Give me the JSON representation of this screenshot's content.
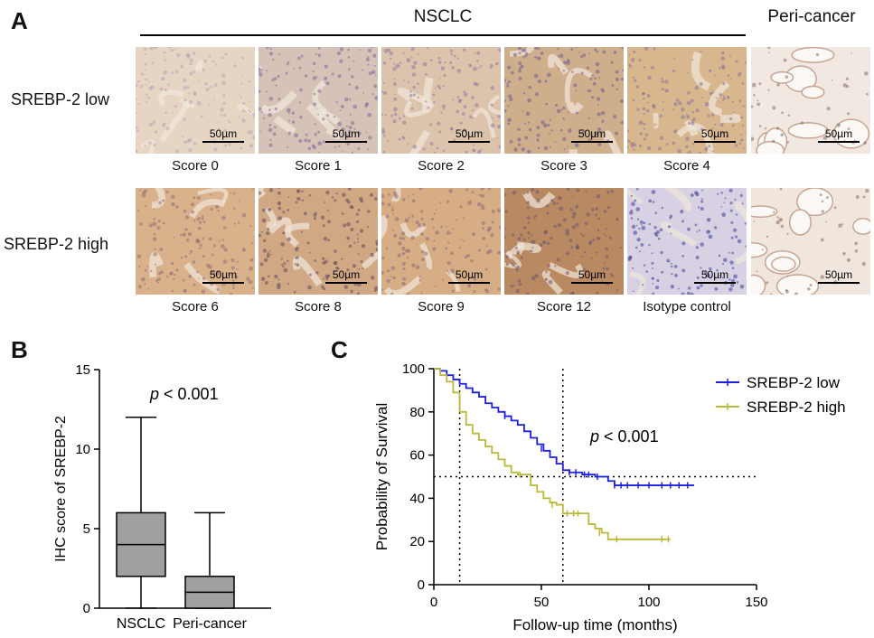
{
  "panelA": {
    "letter": "A",
    "group_header": "NSCLC",
    "peri_header": "Peri-cancer",
    "scale_label": "50µm",
    "rows": [
      {
        "label": "SREBP-2 low",
        "tiles": [
          {
            "caption": "Score 0",
            "tone": "#e7d5c3",
            "nuclei": "#b9a4b6"
          },
          {
            "caption": "Score 1",
            "tone": "#d6c2b6",
            "nuclei": "#7f6c99"
          },
          {
            "caption": "Score 2",
            "tone": "#dcc3ab",
            "nuclei": "#8e7aa0"
          },
          {
            "caption": "Score 3",
            "tone": "#cfae8c",
            "nuclei": "#6b5e90"
          },
          {
            "caption": "Score 4",
            "tone": "#d8b78f",
            "nuclei": "#8a7497"
          },
          {
            "caption": "",
            "tone": "#f1e8e1",
            "nuclei": "#8a6e6c"
          }
        ]
      },
      {
        "label": "SREBP-2 high",
        "tiles": [
          {
            "caption": "Score 6",
            "tone": "#d9b18a",
            "nuclei": "#8d6f78"
          },
          {
            "caption": "Score 8",
            "tone": "#d0a884",
            "nuclei": "#5f4a5e"
          },
          {
            "caption": "Score 9",
            "tone": "#d6ad85",
            "nuclei": "#8e6c78"
          },
          {
            "caption": "Score 12",
            "tone": "#b98a62",
            "nuclei": "#6b5470"
          },
          {
            "caption": "Isotype control",
            "tone": "#d7d1e3",
            "nuclei": "#3e3f94"
          },
          {
            "caption": "",
            "tone": "#f1e6dd",
            "nuclei": "#8a6a60"
          }
        ]
      }
    ]
  },
  "panelB": {
    "letter": "B",
    "chart_data": {
      "type": "boxplot",
      "ylabel": "IHC score of SREBP-2",
      "ylim": [
        0,
        15
      ],
      "yticks": [
        0,
        5,
        10,
        15
      ],
      "categories": [
        "NSCLC",
        "Peri-cancer"
      ],
      "boxes": [
        {
          "name": "NSCLC",
          "min": 0,
          "q1": 2,
          "median": 4,
          "q3": 6,
          "max": 12
        },
        {
          "name": "Peri-cancer",
          "min": 0,
          "q1": 0,
          "median": 1,
          "q3": 2,
          "max": 6
        }
      ],
      "annotation": {
        "p_italic": "p",
        "rest": " < 0.001"
      },
      "box_color": "#a0a0a0"
    }
  },
  "panelC": {
    "letter": "C",
    "chart_data": {
      "type": "line",
      "xlabel": "Follow-up time (months)",
      "ylabel": "Probability of Survival",
      "xlim": [
        0,
        150
      ],
      "ylim": [
        0,
        100
      ],
      "xticks": [
        0,
        50,
        100,
        150
      ],
      "yticks": [
        0,
        20,
        40,
        60,
        80,
        100
      ],
      "reference_lines": {
        "y": 50,
        "x": [
          12,
          60
        ]
      },
      "annotation": {
        "p_italic": "p",
        "rest": " < 0.001"
      },
      "series": [
        {
          "name": "SREBP-2 low",
          "color": "#1f1fe0",
          "points": [
            [
              0,
              100
            ],
            [
              3,
              99
            ],
            [
              6,
              97
            ],
            [
              9,
              95
            ],
            [
              12,
              93
            ],
            [
              15,
              91
            ],
            [
              18,
              89
            ],
            [
              21,
              87
            ],
            [
              24,
              84
            ],
            [
              27,
              82
            ],
            [
              30,
              80
            ],
            [
              33,
              78
            ],
            [
              36,
              76
            ],
            [
              39,
              74
            ],
            [
              42,
              71
            ],
            [
              45,
              68
            ],
            [
              48,
              65
            ],
            [
              51,
              62
            ],
            [
              54,
              59
            ],
            [
              57,
              56
            ],
            [
              60,
              53
            ],
            [
              63,
              52
            ],
            [
              66,
              52
            ],
            [
              69,
              51
            ],
            [
              72,
              51
            ],
            [
              75,
              50
            ],
            [
              78,
              50
            ],
            [
              81,
              48
            ],
            [
              84,
              46
            ],
            [
              90,
              46
            ],
            [
              100,
              46
            ],
            [
              110,
              46
            ],
            [
              121,
              46
            ]
          ],
          "censors": [
            [
              33,
              78
            ],
            [
              50,
              63
            ],
            [
              63,
              52
            ],
            [
              66,
              52
            ],
            [
              70,
              51
            ],
            [
              72,
              51
            ],
            [
              76,
              50
            ],
            [
              84,
              46
            ],
            [
              87,
              46
            ],
            [
              90,
              46
            ],
            [
              95,
              46
            ],
            [
              100,
              46
            ],
            [
              106,
              46
            ],
            [
              110,
              46
            ],
            [
              114,
              46
            ],
            [
              118,
              46
            ]
          ]
        },
        {
          "name": "SREBP-2 high",
          "color": "#b9b93a",
          "points": [
            [
              0,
              100
            ],
            [
              3,
              97
            ],
            [
              6,
              94
            ],
            [
              9,
              89
            ],
            [
              12,
              80
            ],
            [
              15,
              74
            ],
            [
              18,
              70
            ],
            [
              21,
              67
            ],
            [
              24,
              64
            ],
            [
              27,
              61
            ],
            [
              30,
              58
            ],
            [
              33,
              55
            ],
            [
              36,
              52
            ],
            [
              39,
              51
            ],
            [
              42,
              51
            ],
            [
              45,
              46
            ],
            [
              48,
              43
            ],
            [
              51,
              40
            ],
            [
              54,
              38
            ],
            [
              57,
              37
            ],
            [
              60,
              33
            ],
            [
              63,
              33
            ],
            [
              66,
              33
            ],
            [
              69,
              33
            ],
            [
              72,
              28
            ],
            [
              75,
              26
            ],
            [
              78,
              24
            ],
            [
              81,
              21
            ],
            [
              84,
              21
            ],
            [
              90,
              21
            ],
            [
              100,
              21
            ],
            [
              110,
              21
            ]
          ],
          "censors": [
            [
              40,
              51
            ],
            [
              55,
              37
            ],
            [
              62,
              33
            ],
            [
              65,
              33
            ],
            [
              67,
              33
            ],
            [
              77,
              24
            ],
            [
              85,
              21
            ],
            [
              106,
              21
            ],
            [
              109,
              21
            ]
          ]
        }
      ]
    }
  }
}
